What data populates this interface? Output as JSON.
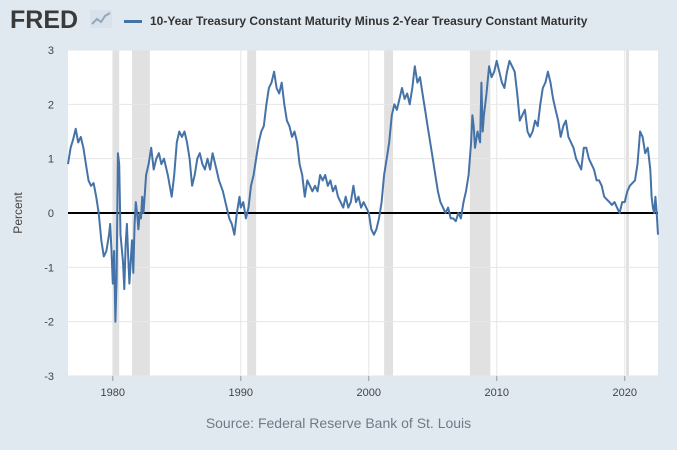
{
  "header": {
    "logo": "FRED",
    "legend_label": "10-Year Treasury Constant Maturity Minus 2-Year Treasury Constant Maturity"
  },
  "footer": {
    "source": "Source: Federal Reserve Bank of St. Louis"
  },
  "colors": {
    "series": "#4572a7",
    "background": "#e1e9f0",
    "plot": "#ffffff",
    "recession": "#e1e1e1",
    "zero_line": "#000000"
  },
  "chart_data": {
    "type": "line",
    "title": "10-Year Treasury Constant Maturity Minus 2-Year Treasury Constant Maturity",
    "ylabel": "Percent",
    "xlabel": "",
    "xlim": [
      1976.5,
      2022.6
    ],
    "ylim": [
      -3,
      3
    ],
    "x_ticks": [
      1980,
      1990,
      2000,
      2010,
      2020
    ],
    "y_ticks": [
      -3,
      -2,
      -1,
      0,
      1,
      2,
      3
    ],
    "grid": true,
    "reference_line": 0,
    "recessions": [
      [
        1980.0,
        1980.5
      ],
      [
        1981.5,
        1982.9
      ],
      [
        1990.5,
        1991.2
      ],
      [
        2001.2,
        2001.9
      ],
      [
        2007.9,
        2009.5
      ],
      [
        2020.1,
        2020.3
      ]
    ],
    "series": [
      {
        "name": "10-Year Treasury Constant Maturity Minus 2-Year Treasury Constant Maturity",
        "points": [
          [
            1976.5,
            0.9
          ],
          [
            1976.7,
            1.2
          ],
          [
            1976.9,
            1.35
          ],
          [
            1977.1,
            1.55
          ],
          [
            1977.3,
            1.3
          ],
          [
            1977.5,
            1.4
          ],
          [
            1977.7,
            1.2
          ],
          [
            1977.9,
            0.9
          ],
          [
            1978.1,
            0.6
          ],
          [
            1978.3,
            0.5
          ],
          [
            1978.5,
            0.55
          ],
          [
            1978.7,
            0.3
          ],
          [
            1978.9,
            0.0
          ],
          [
            1979.1,
            -0.5
          ],
          [
            1979.3,
            -0.8
          ],
          [
            1979.5,
            -0.7
          ],
          [
            1979.7,
            -0.4
          ],
          [
            1979.8,
            -0.2
          ],
          [
            1979.9,
            -0.7
          ],
          [
            1980.0,
            -1.3
          ],
          [
            1980.1,
            -0.7
          ],
          [
            1980.2,
            -2.0
          ],
          [
            1980.3,
            -1.2
          ],
          [
            1980.4,
            1.1
          ],
          [
            1980.5,
            0.9
          ],
          [
            1980.6,
            -0.4
          ],
          [
            1980.8,
            -0.9
          ],
          [
            1980.9,
            -1.4
          ],
          [
            1981.0,
            -0.6
          ],
          [
            1981.1,
            -0.2
          ],
          [
            1981.2,
            -0.8
          ],
          [
            1981.3,
            -1.3
          ],
          [
            1981.4,
            -0.9
          ],
          [
            1981.5,
            -0.5
          ],
          [
            1981.6,
            -1.1
          ],
          [
            1981.7,
            -0.2
          ],
          [
            1981.8,
            0.2
          ],
          [
            1981.9,
            0.0
          ],
          [
            1982.0,
            -0.3
          ],
          [
            1982.1,
            0.0
          ],
          [
            1982.2,
            -0.1
          ],
          [
            1982.3,
            0.3
          ],
          [
            1982.4,
            0.0
          ],
          [
            1982.6,
            0.7
          ],
          [
            1982.8,
            0.9
          ],
          [
            1983.0,
            1.2
          ],
          [
            1983.2,
            0.8
          ],
          [
            1983.4,
            1.0
          ],
          [
            1983.6,
            1.1
          ],
          [
            1983.8,
            0.9
          ],
          [
            1984.0,
            1.0
          ],
          [
            1984.3,
            0.7
          ],
          [
            1984.6,
            0.3
          ],
          [
            1984.8,
            0.7
          ],
          [
            1985.0,
            1.3
          ],
          [
            1985.2,
            1.5
          ],
          [
            1985.4,
            1.4
          ],
          [
            1985.6,
            1.5
          ],
          [
            1985.8,
            1.3
          ],
          [
            1986.0,
            1.0
          ],
          [
            1986.2,
            0.5
          ],
          [
            1986.4,
            0.7
          ],
          [
            1986.6,
            1.0
          ],
          [
            1986.8,
            1.1
          ],
          [
            1987.0,
            0.9
          ],
          [
            1987.2,
            0.8
          ],
          [
            1987.4,
            1.0
          ],
          [
            1987.6,
            0.8
          ],
          [
            1987.8,
            1.1
          ],
          [
            1988.0,
            0.9
          ],
          [
            1988.3,
            0.6
          ],
          [
            1988.6,
            0.4
          ],
          [
            1988.9,
            0.1
          ],
          [
            1989.1,
            -0.1
          ],
          [
            1989.3,
            -0.2
          ],
          [
            1989.5,
            -0.4
          ],
          [
            1989.7,
            0.0
          ],
          [
            1989.9,
            0.3
          ],
          [
            1990.0,
            0.1
          ],
          [
            1990.2,
            0.2
          ],
          [
            1990.4,
            -0.1
          ],
          [
            1990.6,
            0.1
          ],
          [
            1990.8,
            0.5
          ],
          [
            1991.0,
            0.7
          ],
          [
            1991.2,
            1.0
          ],
          [
            1991.4,
            1.3
          ],
          [
            1991.6,
            1.5
          ],
          [
            1991.8,
            1.6
          ],
          [
            1992.0,
            2.0
          ],
          [
            1992.2,
            2.3
          ],
          [
            1992.4,
            2.4
          ],
          [
            1992.6,
            2.6
          ],
          [
            1992.8,
            2.3
          ],
          [
            1993.0,
            2.2
          ],
          [
            1993.2,
            2.4
          ],
          [
            1993.4,
            2.0
          ],
          [
            1993.6,
            1.7
          ],
          [
            1993.8,
            1.6
          ],
          [
            1994.0,
            1.4
          ],
          [
            1994.2,
            1.5
          ],
          [
            1994.4,
            1.3
          ],
          [
            1994.6,
            0.9
          ],
          [
            1994.8,
            0.7
          ],
          [
            1995.0,
            0.3
          ],
          [
            1995.2,
            0.6
          ],
          [
            1995.4,
            0.5
          ],
          [
            1995.6,
            0.4
          ],
          [
            1995.8,
            0.5
          ],
          [
            1996.0,
            0.4
          ],
          [
            1996.2,
            0.7
          ],
          [
            1996.4,
            0.6
          ],
          [
            1996.6,
            0.7
          ],
          [
            1996.8,
            0.5
          ],
          [
            1997.0,
            0.6
          ],
          [
            1997.2,
            0.4
          ],
          [
            1997.4,
            0.5
          ],
          [
            1997.6,
            0.3
          ],
          [
            1997.8,
            0.2
          ],
          [
            1998.0,
            0.1
          ],
          [
            1998.2,
            0.3
          ],
          [
            1998.4,
            0.1
          ],
          [
            1998.6,
            0.2
          ],
          [
            1998.8,
            0.5
          ],
          [
            1999.0,
            0.2
          ],
          [
            1999.2,
            0.3
          ],
          [
            1999.4,
            0.1
          ],
          [
            1999.6,
            0.2
          ],
          [
            1999.8,
            0.1
          ],
          [
            2000.0,
            0.0
          ],
          [
            2000.2,
            -0.3
          ],
          [
            2000.4,
            -0.4
          ],
          [
            2000.6,
            -0.3
          ],
          [
            2000.8,
            -0.1
          ],
          [
            2001.0,
            0.2
          ],
          [
            2001.2,
            0.7
          ],
          [
            2001.4,
            1.0
          ],
          [
            2001.6,
            1.3
          ],
          [
            2001.8,
            1.8
          ],
          [
            2002.0,
            2.0
          ],
          [
            2002.2,
            1.9
          ],
          [
            2002.4,
            2.1
          ],
          [
            2002.6,
            2.3
          ],
          [
            2002.8,
            2.1
          ],
          [
            2003.0,
            2.2
          ],
          [
            2003.2,
            2.0
          ],
          [
            2003.4,
            2.3
          ],
          [
            2003.6,
            2.7
          ],
          [
            2003.8,
            2.4
          ],
          [
            2004.0,
            2.5
          ],
          [
            2004.2,
            2.2
          ],
          [
            2004.4,
            1.9
          ],
          [
            2004.6,
            1.6
          ],
          [
            2004.8,
            1.3
          ],
          [
            2005.0,
            1.0
          ],
          [
            2005.2,
            0.7
          ],
          [
            2005.4,
            0.4
          ],
          [
            2005.6,
            0.2
          ],
          [
            2005.8,
            0.1
          ],
          [
            2006.0,
            0.0
          ],
          [
            2006.2,
            0.1
          ],
          [
            2006.4,
            -0.1
          ],
          [
            2006.6,
            -0.1
          ],
          [
            2006.8,
            -0.15
          ],
          [
            2007.0,
            0.0
          ],
          [
            2007.2,
            -0.1
          ],
          [
            2007.4,
            0.2
          ],
          [
            2007.6,
            0.4
          ],
          [
            2007.8,
            0.7
          ],
          [
            2008.0,
            1.3
          ],
          [
            2008.1,
            1.8
          ],
          [
            2008.2,
            1.6
          ],
          [
            2008.3,
            1.2
          ],
          [
            2008.5,
            1.5
          ],
          [
            2008.7,
            1.3
          ],
          [
            2008.8,
            2.4
          ],
          [
            2008.9,
            1.5
          ],
          [
            2009.0,
            1.8
          ],
          [
            2009.2,
            2.2
          ],
          [
            2009.4,
            2.7
          ],
          [
            2009.6,
            2.5
          ],
          [
            2009.8,
            2.6
          ],
          [
            2010.0,
            2.8
          ],
          [
            2010.2,
            2.6
          ],
          [
            2010.4,
            2.4
          ],
          [
            2010.6,
            2.3
          ],
          [
            2010.8,
            2.6
          ],
          [
            2011.0,
            2.8
          ],
          [
            2011.2,
            2.7
          ],
          [
            2011.4,
            2.6
          ],
          [
            2011.6,
            2.2
          ],
          [
            2011.8,
            1.7
          ],
          [
            2012.0,
            1.8
          ],
          [
            2012.2,
            1.9
          ],
          [
            2012.4,
            1.5
          ],
          [
            2012.6,
            1.4
          ],
          [
            2012.8,
            1.5
          ],
          [
            2013.0,
            1.7
          ],
          [
            2013.2,
            1.6
          ],
          [
            2013.4,
            2.0
          ],
          [
            2013.6,
            2.3
          ],
          [
            2013.8,
            2.4
          ],
          [
            2014.0,
            2.6
          ],
          [
            2014.2,
            2.4
          ],
          [
            2014.4,
            2.1
          ],
          [
            2014.6,
            1.9
          ],
          [
            2014.8,
            1.7
          ],
          [
            2015.0,
            1.4
          ],
          [
            2015.2,
            1.6
          ],
          [
            2015.4,
            1.7
          ],
          [
            2015.6,
            1.4
          ],
          [
            2015.8,
            1.3
          ],
          [
            2016.0,
            1.2
          ],
          [
            2016.2,
            1.0
          ],
          [
            2016.4,
            0.9
          ],
          [
            2016.6,
            0.8
          ],
          [
            2016.8,
            1.2
          ],
          [
            2017.0,
            1.2
          ],
          [
            2017.2,
            1.0
          ],
          [
            2017.4,
            0.9
          ],
          [
            2017.6,
            0.8
          ],
          [
            2017.8,
            0.6
          ],
          [
            2018.0,
            0.6
          ],
          [
            2018.2,
            0.5
          ],
          [
            2018.4,
            0.3
          ],
          [
            2018.6,
            0.25
          ],
          [
            2018.8,
            0.2
          ],
          [
            2019.0,
            0.15
          ],
          [
            2019.2,
            0.2
          ],
          [
            2019.4,
            0.1
          ],
          [
            2019.6,
            0.0
          ],
          [
            2019.8,
            0.2
          ],
          [
            2020.0,
            0.2
          ],
          [
            2020.2,
            0.4
          ],
          [
            2020.4,
            0.5
          ],
          [
            2020.6,
            0.55
          ],
          [
            2020.8,
            0.6
          ],
          [
            2021.0,
            0.9
          ],
          [
            2021.2,
            1.5
          ],
          [
            2021.4,
            1.4
          ],
          [
            2021.6,
            1.1
          ],
          [
            2021.8,
            1.2
          ],
          [
            2022.0,
            0.8
          ],
          [
            2022.1,
            0.3
          ],
          [
            2022.2,
            0.1
          ],
          [
            2022.3,
            0.0
          ],
          [
            2022.4,
            0.3
          ],
          [
            2022.5,
            0.0
          ],
          [
            2022.6,
            -0.4
          ]
        ]
      }
    ]
  }
}
